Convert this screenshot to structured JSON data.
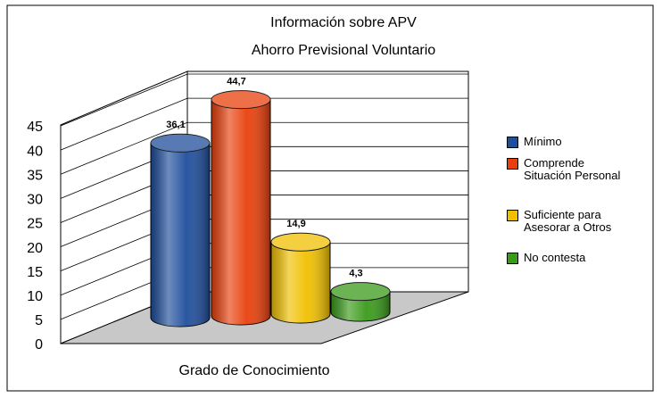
{
  "chart_data": {
    "type": "bar3d",
    "title": "Información sobre APV",
    "subtitle": "Ahorro Previsional Voluntario",
    "xlabel": "Grado de Conocimiento",
    "series": [
      {
        "name": "Mínimo",
        "color": "#1f4e9c",
        "values": [
          36.1
        ],
        "value_labels": [
          "36,1"
        ]
      },
      {
        "name": "Comprende Situación Personal",
        "color": "#e8400c",
        "values": [
          44.7
        ],
        "value_labels": [
          "44,7"
        ]
      },
      {
        "name": "Suficiente para Asesorar a Otros",
        "color": "#f0c000",
        "values": [
          14.9
        ],
        "value_labels": [
          "14,9"
        ]
      },
      {
        "name": "No contesta",
        "color": "#3a9a1a",
        "values": [
          4.3
        ],
        "value_labels": [
          "4,3"
        ]
      }
    ],
    "ylim": [
      0,
      45
    ],
    "yticks": [
      0,
      5,
      10,
      15,
      20,
      25,
      30,
      35,
      40,
      45
    ],
    "grid": true,
    "legend": "right"
  }
}
